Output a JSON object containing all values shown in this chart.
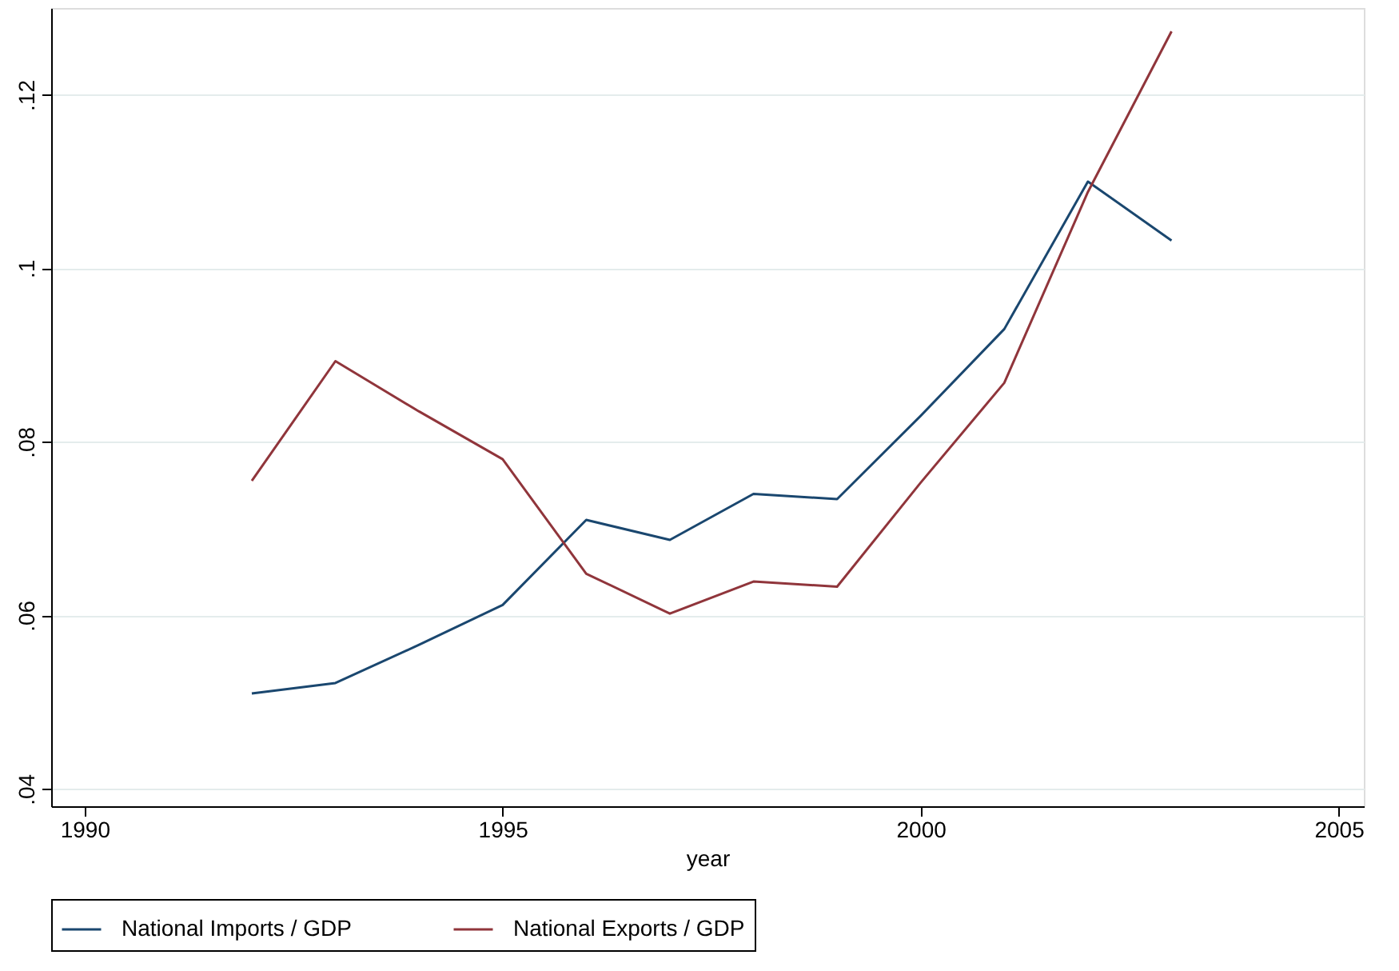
{
  "chart_data": {
    "type": "line",
    "xlabel": "year",
    "x": [
      1992,
      1993,
      1994,
      1995,
      1996,
      1997,
      1998,
      1999,
      2000,
      2001,
      2002,
      2003
    ],
    "series": [
      {
        "name": "National Imports / GDP",
        "color": "#1a476f",
        "values": [
          0.051,
          0.0522,
          0.0566,
          0.0612,
          0.071,
          0.0687,
          0.074,
          0.0734,
          0.083,
          0.093,
          0.11,
          0.1032
        ]
      },
      {
        "name": "National Exports / GDP",
        "color": "#90353b",
        "values": [
          0.0755,
          0.0893,
          0.0835,
          0.078,
          0.0648,
          0.0602,
          0.0639,
          0.0633,
          0.0753,
          0.0868,
          0.1088,
          0.1273
        ]
      }
    ],
    "xlim": [
      1989.6,
      2005.3
    ],
    "xticks": [
      1990,
      1995,
      2000,
      2005
    ],
    "ylim": [
      0.038,
      0.13
    ],
    "yticks": [
      {
        "value": 0.04,
        "label": ".04"
      },
      {
        "value": 0.06,
        "label": ".06"
      },
      {
        "value": 0.08,
        "label": ".08"
      },
      {
        "value": 0.1,
        "label": ".1"
      },
      {
        "value": 0.12,
        "label": ".12"
      }
    ],
    "grid": "y",
    "legend": "bottom",
    "marker": "none",
    "line_style": "solid"
  }
}
